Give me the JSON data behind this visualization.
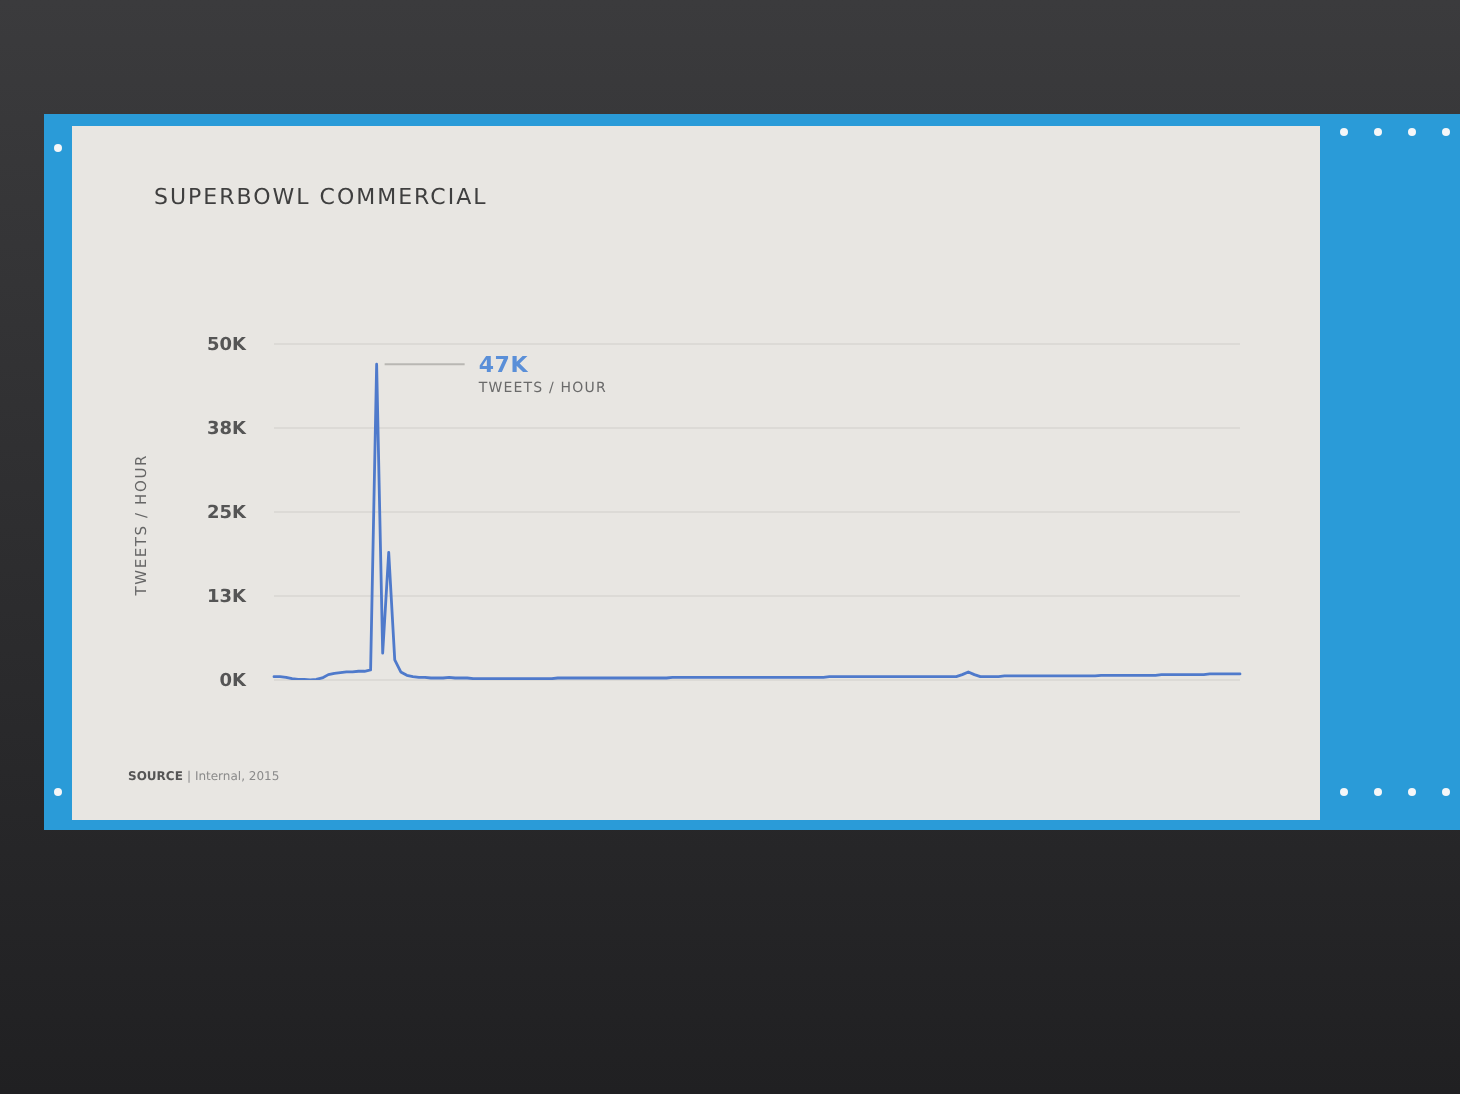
{
  "chart_data": {
    "type": "line",
    "title": "SUPERBOWL COMMERCIAL",
    "ylabel": "TWEETS / HOUR",
    "annotations": [
      "47K",
      "TWEETS / HOUR",
      "SOURCE | Internal, 2015"
    ],
    "categories": [
      null,
      null,
      null,
      null,
      null,
      null,
      null,
      null,
      null,
      null,
      null,
      null,
      null,
      null,
      null,
      null,
      null,
      null,
      null,
      null,
      null,
      null,
      null,
      null,
      null,
      null,
      null,
      null,
      null,
      null,
      null,
      null,
      null,
      null,
      null,
      null,
      null,
      null,
      null,
      null,
      null,
      null,
      null,
      null,
      null,
      null,
      null,
      null,
      null,
      null,
      null,
      null,
      null,
      null,
      null,
      null,
      null,
      null,
      null,
      null,
      null,
      null,
      null,
      null,
      null,
      null,
      null,
      null,
      null,
      null,
      null,
      null,
      null,
      null,
      null,
      null,
      null,
      null,
      null,
      null,
      null,
      null,
      null,
      null,
      null,
      null,
      null,
      null,
      null,
      null,
      null,
      null,
      null,
      null,
      null,
      null,
      null,
      null,
      null,
      null,
      null,
      null,
      null,
      null,
      null,
      null,
      null,
      null,
      null,
      null,
      null,
      null,
      null,
      null,
      null,
      null,
      null,
      null,
      null,
      null,
      null,
      null,
      null,
      null,
      null,
      null,
      null,
      null,
      null,
      null,
      null,
      null,
      null,
      null,
      null,
      null,
      null,
      null,
      null,
      null,
      null,
      null,
      null,
      null,
      null,
      null,
      null,
      null,
      null,
      null,
      null,
      null,
      null,
      null,
      null,
      null,
      null,
      null,
      null,
      null,
      null
    ],
    "series": [
      {
        "color": "#4f7acb",
        "values": [
          0.5,
          0.5,
          0.4,
          0.2,
          0.1,
          0.1,
          0,
          0.1,
          0.3,
          0.8,
          1,
          1.1,
          1.2,
          1.2,
          1.3,
          1.3,
          1.5,
          47,
          4,
          19,
          3,
          1.2,
          0.7,
          0.5,
          0.4,
          0.4,
          0.3,
          0.3,
          0.3,
          0.4,
          0.3,
          0.3,
          0.3,
          0.2,
          0.2,
          0.2,
          0.2,
          0.2,
          0.2,
          0.2,
          0.2,
          0.2,
          0.2,
          0.2,
          0.2,
          0.2,
          0.2,
          0.3,
          0.3,
          0.3,
          0.3,
          0.3,
          0.3,
          0.3,
          0.3,
          0.3,
          0.3,
          0.3,
          0.3,
          0.3,
          0.3,
          0.3,
          0.3,
          0.3,
          0.3,
          0.3,
          0.4,
          0.4,
          0.4,
          0.4,
          0.4,
          0.4,
          0.4,
          0.4,
          0.4,
          0.4,
          0.4,
          0.4,
          0.4,
          0.4,
          0.4,
          0.4,
          0.4,
          0.4,
          0.4,
          0.4,
          0.4,
          0.4,
          0.4,
          0.4,
          0.4,
          0.4,
          0.5,
          0.5,
          0.5,
          0.5,
          0.5,
          0.5,
          0.5,
          0.5,
          0.5,
          0.5,
          0.5,
          0.5,
          0.5,
          0.5,
          0.5,
          0.5,
          0.5,
          0.5,
          0.5,
          0.5,
          0.5,
          0.5,
          0.8,
          1.2,
          0.8,
          0.5,
          0.5,
          0.5,
          0.5,
          0.6,
          0.6,
          0.6,
          0.6,
          0.6,
          0.6,
          0.6,
          0.6,
          0.6,
          0.6,
          0.6,
          0.6,
          0.6,
          0.6,
          0.6,
          0.6,
          0.7,
          0.7,
          0.7,
          0.7,
          0.7,
          0.7,
          0.7,
          0.7,
          0.7,
          0.7,
          0.8,
          0.8,
          0.8,
          0.8,
          0.8,
          0.8,
          0.8,
          0.8,
          0.9,
          0.9,
          0.9,
          0.9,
          0.9,
          0.9
        ]
      }
    ],
    "ylim": [
      0,
      50
    ],
    "yticks": [
      {
        "value": 0,
        "label": "0K"
      },
      {
        "value": 12.5,
        "label": "13K"
      },
      {
        "value": 25,
        "label": "25K"
      },
      {
        "value": 37.5,
        "label": "38K"
      },
      {
        "value": 50,
        "label": "50K"
      }
    ],
    "grid": "y"
  }
}
